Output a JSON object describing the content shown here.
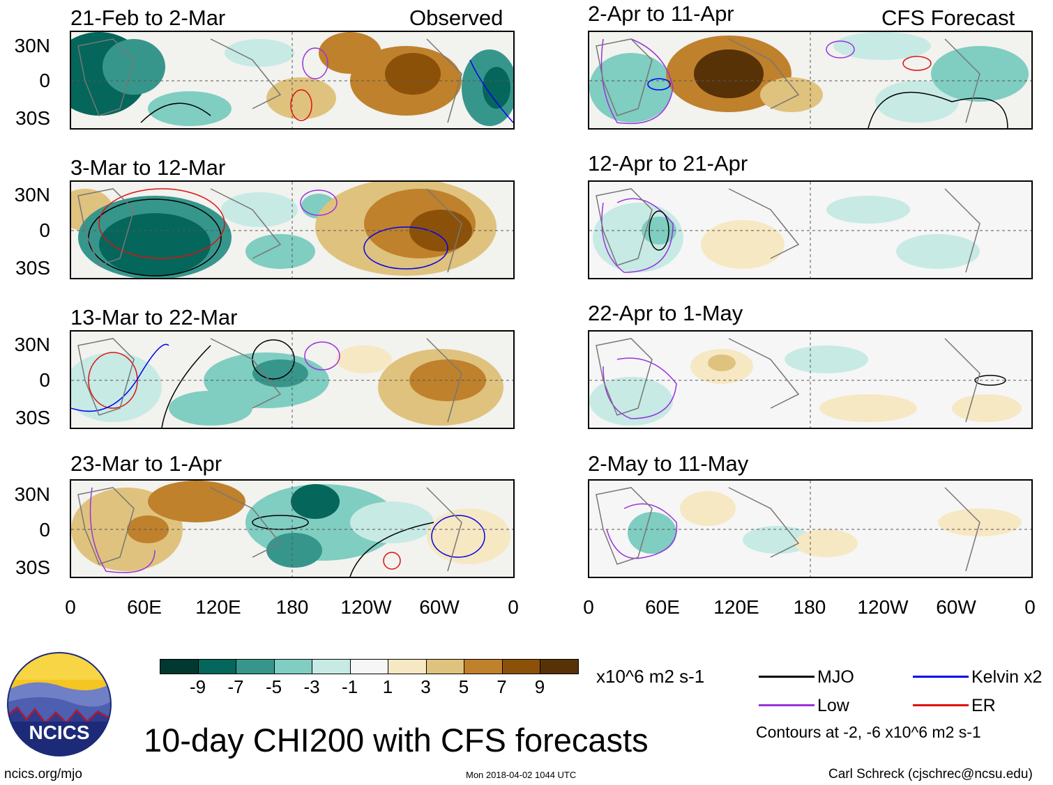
{
  "colors": {
    "mjo": "#000000",
    "kelvin": "#0000ee",
    "low": "#9933dd",
    "er": "#dd1111",
    "land": "#777777"
  },
  "header": {
    "observed_label": "Observed",
    "forecast_label": "CFS Forecast"
  },
  "panels": {
    "observed": [
      {
        "title": "21-Feb to 2-Mar"
      },
      {
        "title": "3-Mar to 12-Mar"
      },
      {
        "title": "13-Mar to 22-Mar"
      },
      {
        "title": "23-Mar to 1-Apr"
      }
    ],
    "forecast": [
      {
        "title": "2-Apr to 11-Apr"
      },
      {
        "title": "12-Apr to 21-Apr"
      },
      {
        "title": "22-Apr to 1-May"
      },
      {
        "title": "2-May to 11-May"
      }
    ]
  },
  "axes": {
    "lat_labels": [
      "30N",
      "0",
      "30S"
    ],
    "lon_labels": [
      "0",
      "60E",
      "120E",
      "180",
      "120W",
      "60W",
      "0"
    ]
  },
  "colorbar": {
    "colors": [
      "#01382f",
      "#05665b",
      "#37968c",
      "#80cdc1",
      "#c7eae5",
      "#f6f6f6",
      "#f6e8c3",
      "#dfc27d",
      "#bf812c",
      "#8c5109",
      "#573207"
    ],
    "labels": [
      "-9",
      "-7",
      "-5",
      "-3",
      "-1",
      "1",
      "3",
      "5",
      "7",
      "9"
    ],
    "units": "x10^6 m2 s-1"
  },
  "legend": {
    "items": [
      {
        "label": "MJO"
      },
      {
        "label": "Kelvin x2"
      },
      {
        "label": "Low"
      },
      {
        "label": "ER"
      }
    ],
    "contour_note": "Contours at -2, -6 x10^6 m2 s-1"
  },
  "logo": {
    "text": "NCICS"
  },
  "footer": {
    "main_title": "10-day CHI200 with CFS forecasts",
    "site": "ncics.org/mjo",
    "timestamp": "Mon 2018-04-02 1044 UTC",
    "credit": "Carl Schreck (cjschrec@ncsu.edu)"
  }
}
